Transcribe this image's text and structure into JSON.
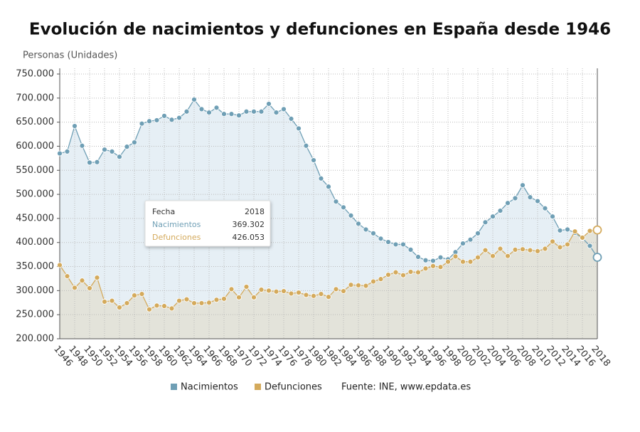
{
  "chart_data": {
    "type": "line",
    "title": "Evolución de nacimientos y defunciones en España desde 1946",
    "y_axis_label": "Personas (Unidades)",
    "source": "Fuente: INE, www.epdata.es",
    "categories": [
      "1946",
      null,
      "1948",
      null,
      "1950",
      null,
      "1952",
      null,
      "1954",
      null,
      "1956",
      null,
      "1958",
      null,
      "1960",
      null,
      "1962",
      null,
      "1964",
      null,
      "1966",
      null,
      "1968",
      null,
      "1970",
      null,
      "1972",
      null,
      "1974",
      null,
      "1976",
      null,
      "1978",
      null,
      "1980",
      null,
      "1982",
      null,
      "1984",
      null,
      "1986",
      null,
      "1988",
      null,
      "1990",
      null,
      "1992",
      null,
      "1994",
      null,
      "1996",
      null,
      "1998",
      null,
      "2000",
      null,
      "2002",
      null,
      "2004",
      null,
      "2006",
      null,
      "2008",
      null,
      "2010",
      null,
      "2012",
      null,
      "2014",
      null,
      "2016",
      null,
      "2018"
    ],
    "series": [
      {
        "name": "Nacimientos",
        "color": "#6f9fb5",
        "fill": "#e6eff5",
        "values": [
          585000,
          589000,
          642000,
          601000,
          566000,
          567000,
          593000,
          589000,
          578000,
          599000,
          608000,
          647000,
          652000,
          654000,
          663000,
          655000,
          659000,
          672000,
          697000,
          677000,
          670000,
          680000,
          667000,
          667000,
          664000,
          672000,
          672000,
          672000,
          688000,
          670000,
          677000,
          657000,
          637000,
          601000,
          571000,
          533000,
          516000,
          485000,
          473000,
          456000,
          439000,
          427000,
          419000,
          408000,
          401000,
          396000,
          396000,
          385000,
          370000,
          363000,
          362000,
          369000,
          365000,
          380000,
          398000,
          406000,
          419000,
          442000,
          454000,
          466000,
          482000,
          492000,
          519000,
          494000,
          486000,
          471000,
          454000,
          425000,
          427000,
          420000,
          409000,
          393000,
          369302
        ]
      },
      {
        "name": "Defunciones",
        "color": "#d4aa5c",
        "fill": "#e3e3da",
        "values": [
          353000,
          330000,
          306000,
          321000,
          305000,
          327000,
          277000,
          279000,
          265000,
          274000,
          290000,
          293000,
          261000,
          269000,
          268000,
          263000,
          279000,
          282000,
          274000,
          274000,
          275000,
          281000,
          283000,
          303000,
          286000,
          308000,
          286000,
          302000,
          300000,
          298000,
          299000,
          294000,
          296000,
          291000,
          289000,
          293000,
          287000,
          303000,
          299000,
          312000,
          311000,
          310000,
          319000,
          324000,
          333000,
          338000,
          332000,
          339000,
          338000,
          346000,
          351000,
          349000,
          360000,
          371000,
          360000,
          360000,
          369000,
          384000,
          372000,
          387000,
          372000,
          385000,
          386000,
          384000,
          382000,
          387000,
          402000,
          390000,
          396000,
          423000,
          410000,
          424000,
          426053
        ]
      }
    ],
    "ylim": [
      200000,
      750000
    ],
    "yticks": [
      {
        "value": 200000,
        "label": "200.000"
      },
      {
        "value": 250000,
        "label": "250.000"
      },
      {
        "value": 300000,
        "label": "300.000"
      },
      {
        "value": 350000,
        "label": "350.000"
      },
      {
        "value": 400000,
        "label": "400.000"
      },
      {
        "value": 450000,
        "label": "450.000"
      },
      {
        "value": 500000,
        "label": "500.000"
      },
      {
        "value": 550000,
        "label": "550.000"
      },
      {
        "value": 600000,
        "label": "600.000"
      },
      {
        "value": 650000,
        "label": "650.000"
      },
      {
        "value": 700000,
        "label": "700.000"
      },
      {
        "value": 750000,
        "label": "750.000"
      }
    ],
    "grid": true,
    "tooltip": {
      "header": "Fecha",
      "date": "2018",
      "rows": [
        {
          "name": "Nacimientos",
          "value": "369.302"
        },
        {
          "name": "Defunciones",
          "value": "426.053"
        }
      ]
    }
  }
}
